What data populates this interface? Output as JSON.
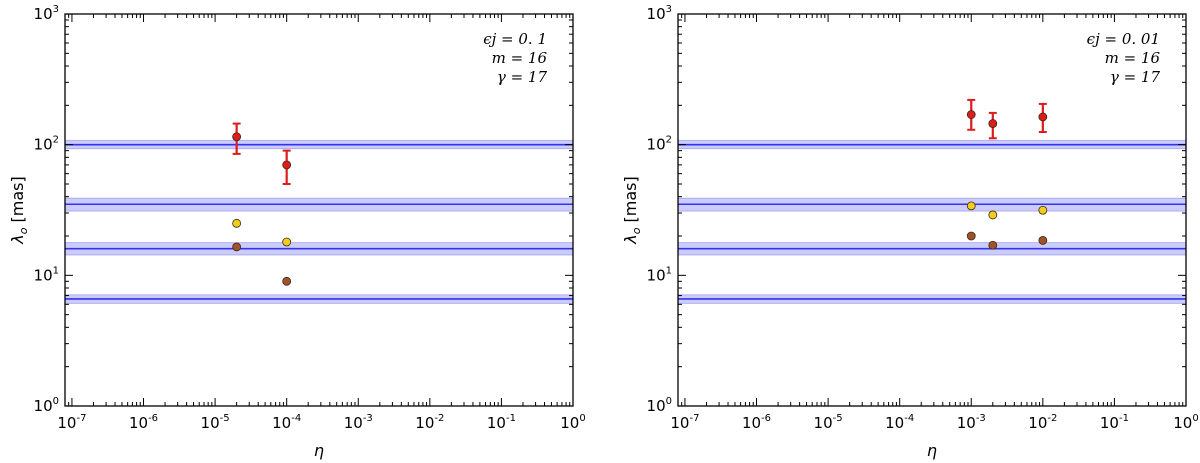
{
  "chart_data": [
    {
      "type": "scatter",
      "xlabel": "η",
      "ylabel": "λ",
      "ylabel_sub": "o",
      "ylabel_unit": "[mas]",
      "xscale": "log",
      "yscale": "log",
      "xlim": [
        8e-08,
        1
      ],
      "ylim": [
        1,
        1000
      ],
      "xticks": [
        {
          "base": "10",
          "exp": "-7",
          "value": 1e-07
        },
        {
          "base": "10",
          "exp": "-6",
          "value": 1e-06
        },
        {
          "base": "10",
          "exp": "-5",
          "value": 1e-05
        },
        {
          "base": "10",
          "exp": "-4",
          "value": 0.0001
        },
        {
          "base": "10",
          "exp": "-3",
          "value": 0.001
        },
        {
          "base": "10",
          "exp": "-2",
          "value": 0.01
        },
        {
          "base": "10",
          "exp": "-1",
          "value": 0.1
        },
        {
          "base": "10",
          "exp": "0",
          "value": 1
        }
      ],
      "yticks": [
        {
          "base": "10",
          "exp": "0",
          "value": 1
        },
        {
          "base": "10",
          "exp": "1",
          "value": 10
        },
        {
          "base": "10",
          "exp": "2",
          "value": 100
        },
        {
          "base": "10",
          "exp": "3",
          "value": 1000
        }
      ],
      "annotations": [
        "ϵj = 0. 1",
        "m = 16",
        "γ = 17"
      ],
      "bands": [
        {
          "value": 100,
          "low": 93,
          "high": 108
        },
        {
          "value": 35,
          "low": 31,
          "high": 39
        },
        {
          "value": 16,
          "low": 14.3,
          "high": 17.8
        },
        {
          "value": 6.6,
          "low": 6.1,
          "high": 7.1
        }
      ],
      "series": [
        {
          "color": "#dd1c1c",
          "points": [
            {
              "x": 2e-05,
              "y": 115,
              "err_low": 85,
              "err_high": 145
            },
            {
              "x": 0.0001,
              "y": 70,
              "err_low": 50,
              "err_high": 90
            }
          ]
        },
        {
          "color": "#f2cc1f",
          "points": [
            {
              "x": 2e-05,
              "y": 25
            },
            {
              "x": 0.0001,
              "y": 18
            }
          ]
        },
        {
          "color": "#a0522d",
          "points": [
            {
              "x": 2e-05,
              "y": 16.5
            },
            {
              "x": 0.0001,
              "y": 9
            }
          ]
        }
      ],
      "band_color": "#3333ee",
      "grid": false
    },
    {
      "type": "scatter",
      "xlabel": "η",
      "ylabel": "λ",
      "ylabel_sub": "o",
      "ylabel_unit": "[mas]",
      "xscale": "log",
      "yscale": "log",
      "xlim": [
        8e-08,
        1
      ],
      "ylim": [
        1,
        1000
      ],
      "xticks": [
        {
          "base": "10",
          "exp": "-7",
          "value": 1e-07
        },
        {
          "base": "10",
          "exp": "-6",
          "value": 1e-06
        },
        {
          "base": "10",
          "exp": "-5",
          "value": 1e-05
        },
        {
          "base": "10",
          "exp": "-4",
          "value": 0.0001
        },
        {
          "base": "10",
          "exp": "-3",
          "value": 0.001
        },
        {
          "base": "10",
          "exp": "-2",
          "value": 0.01
        },
        {
          "base": "10",
          "exp": "-1",
          "value": 0.1
        },
        {
          "base": "10",
          "exp": "0",
          "value": 1
        }
      ],
      "yticks": [
        {
          "base": "10",
          "exp": "0",
          "value": 1
        },
        {
          "base": "10",
          "exp": "1",
          "value": 10
        },
        {
          "base": "10",
          "exp": "2",
          "value": 100
        },
        {
          "base": "10",
          "exp": "3",
          "value": 1000
        }
      ],
      "annotations": [
        "ϵj = 0. 01",
        "m = 16",
        "γ = 17"
      ],
      "bands": [
        {
          "value": 100,
          "low": 93,
          "high": 108
        },
        {
          "value": 35,
          "low": 31,
          "high": 39
        },
        {
          "value": 16,
          "low": 14.3,
          "high": 17.8
        },
        {
          "value": 6.6,
          "low": 6.1,
          "high": 7.1
        }
      ],
      "series": [
        {
          "color": "#dd1c1c",
          "points": [
            {
              "x": 0.001,
              "y": 170,
              "err_low": 130,
              "err_high": 220
            },
            {
              "x": 0.002,
              "y": 145,
              "err_low": 112,
              "err_high": 175
            },
            {
              "x": 0.01,
              "y": 163,
              "err_low": 125,
              "err_high": 205
            }
          ]
        },
        {
          "color": "#f2cc1f",
          "points": [
            {
              "x": 0.001,
              "y": 34
            },
            {
              "x": 0.002,
              "y": 29
            },
            {
              "x": 0.01,
              "y": 31.5
            }
          ]
        },
        {
          "color": "#a0522d",
          "points": [
            {
              "x": 0.001,
              "y": 20
            },
            {
              "x": 0.002,
              "y": 17
            },
            {
              "x": 0.01,
              "y": 18.5
            }
          ]
        }
      ],
      "band_color": "#3333ee",
      "grid": false
    }
  ]
}
